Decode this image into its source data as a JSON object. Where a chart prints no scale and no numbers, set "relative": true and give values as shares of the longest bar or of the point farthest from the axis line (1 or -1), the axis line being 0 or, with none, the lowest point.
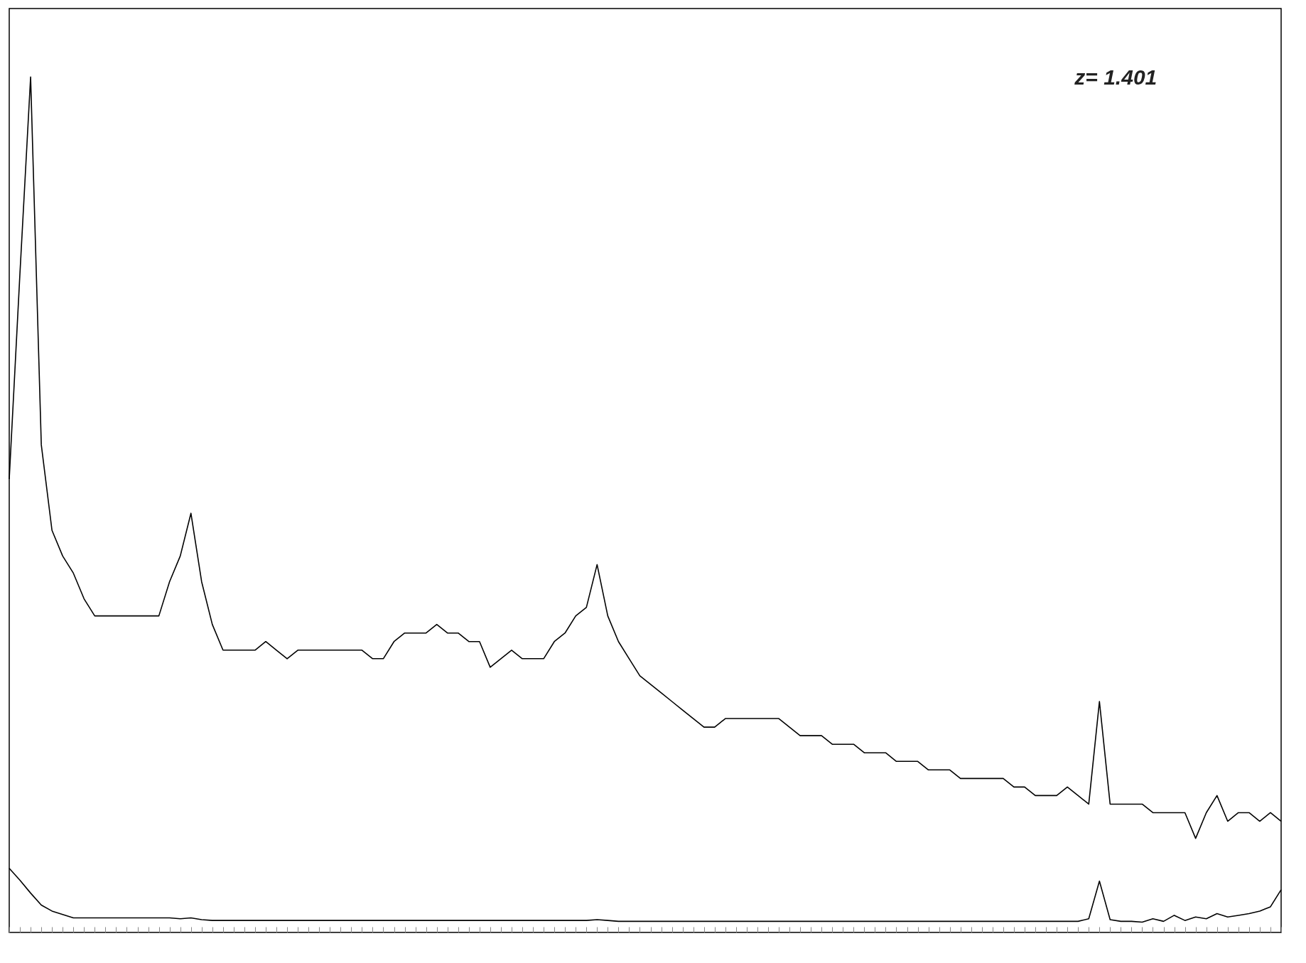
{
  "chart_data": {
    "type": "line",
    "relative": true,
    "tick_labels": false,
    "categories": [
      null,
      null,
      null,
      null,
      null,
      null,
      null,
      null,
      null,
      null,
      null,
      null,
      null,
      null,
      null,
      null,
      null,
      null,
      null,
      null,
      null,
      null,
      null,
      null,
      null,
      null,
      null,
      null,
      null,
      null,
      null,
      null,
      null,
      null,
      null,
      null,
      null,
      null,
      null,
      null,
      null,
      null,
      null,
      null,
      null,
      null,
      null,
      null,
      null,
      null,
      null,
      null,
      null,
      null,
      null,
      null,
      null,
      null,
      null,
      null,
      null,
      null,
      null,
      null,
      null,
      null,
      null,
      null,
      null,
      null,
      null,
      null,
      null,
      null,
      null,
      null,
      null,
      null,
      null,
      null,
      null,
      null,
      null,
      null,
      null,
      null,
      null,
      null,
      null,
      null,
      null,
      null,
      null,
      null,
      null,
      null,
      null,
      null,
      null,
      null,
      null,
      null,
      null,
      null,
      null,
      null,
      null,
      null,
      null,
      null,
      null,
      null,
      null,
      null,
      null,
      null,
      null,
      null,
      null,
      null
    ],
    "series": [
      {
        "color": "#000000",
        "values": [
          0.53,
          0.77,
          1.0,
          0.57,
          0.47,
          0.44,
          0.42,
          0.39,
          0.37,
          0.37,
          0.37,
          0.37,
          0.37,
          0.37,
          0.37,
          0.41,
          0.44,
          0.49,
          0.41,
          0.36,
          0.33,
          0.33,
          0.33,
          0.33,
          0.34,
          0.33,
          0.32,
          0.33,
          0.33,
          0.33,
          0.33,
          0.33,
          0.33,
          0.33,
          0.32,
          0.32,
          0.34,
          0.35,
          0.35,
          0.35,
          0.36,
          0.35,
          0.35,
          0.34,
          0.34,
          0.31,
          0.32,
          0.33,
          0.32,
          0.32,
          0.32,
          0.34,
          0.35,
          0.37,
          0.38,
          0.43,
          0.37,
          0.34,
          0.32,
          0.3,
          0.29,
          0.28,
          0.27,
          0.26,
          0.25,
          0.24,
          0.24,
          0.25,
          0.25,
          0.25,
          0.25,
          0.25,
          0.25,
          0.24,
          0.23,
          0.23,
          0.23,
          0.22,
          0.22,
          0.22,
          0.21,
          0.21,
          0.21,
          0.2,
          0.2,
          0.2,
          0.19,
          0.19,
          0.19,
          0.18,
          0.18,
          0.18,
          0.18,
          0.18,
          0.17,
          0.17,
          0.16,
          0.16,
          0.16,
          0.17,
          0.16,
          0.15,
          0.27,
          0.15,
          0.15,
          0.15,
          0.15,
          0.14,
          0.14,
          0.14,
          0.14,
          0.11,
          0.14,
          0.16,
          0.13,
          0.14,
          0.14,
          0.13,
          0.14,
          0.13
        ]
      },
      {
        "color": "#000000",
        "values": [
          0.075,
          0.061,
          0.046,
          0.032,
          0.025,
          0.021,
          0.017,
          0.017,
          0.017,
          0.017,
          0.017,
          0.017,
          0.017,
          0.017,
          0.017,
          0.017,
          0.016,
          0.017,
          0.015,
          0.014,
          0.014,
          0.014,
          0.014,
          0.014,
          0.014,
          0.014,
          0.014,
          0.014,
          0.014,
          0.014,
          0.014,
          0.014,
          0.014,
          0.014,
          0.014,
          0.014,
          0.014,
          0.014,
          0.014,
          0.014,
          0.014,
          0.014,
          0.014,
          0.014,
          0.014,
          0.014,
          0.014,
          0.014,
          0.014,
          0.014,
          0.014,
          0.014,
          0.014,
          0.014,
          0.014,
          0.015,
          0.014,
          0.013,
          0.013,
          0.013,
          0.013,
          0.013,
          0.013,
          0.013,
          0.013,
          0.013,
          0.013,
          0.013,
          0.013,
          0.013,
          0.013,
          0.013,
          0.013,
          0.013,
          0.013,
          0.013,
          0.013,
          0.013,
          0.013,
          0.013,
          0.013,
          0.013,
          0.013,
          0.013,
          0.013,
          0.013,
          0.013,
          0.013,
          0.013,
          0.013,
          0.013,
          0.013,
          0.013,
          0.013,
          0.013,
          0.013,
          0.013,
          0.013,
          0.013,
          0.013,
          0.013,
          0.016,
          0.06,
          0.015,
          0.013,
          0.013,
          0.012,
          0.016,
          0.013,
          0.02,
          0.014,
          0.018,
          0.016,
          0.022,
          0.018,
          0.02,
          0.022,
          0.025,
          0.03,
          0.05
        ]
      }
    ],
    "annotations": [
      "z= 1.401"
    ]
  }
}
